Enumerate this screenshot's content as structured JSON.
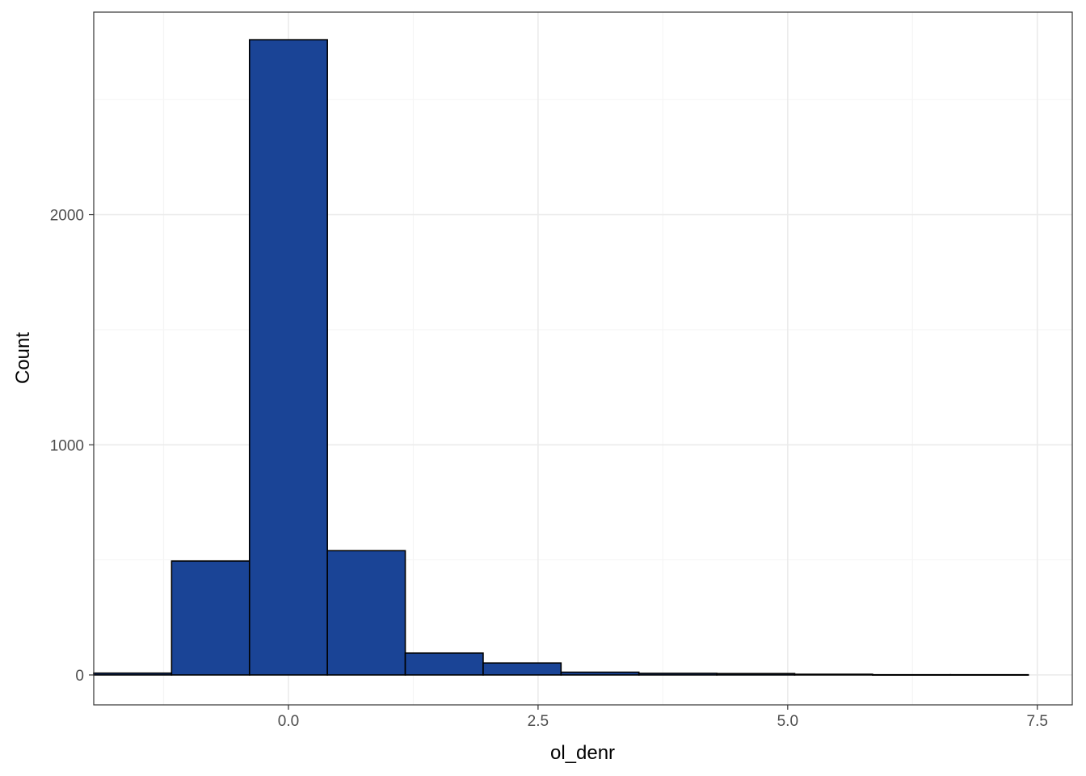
{
  "chart_data": {
    "type": "bar",
    "subtype": "histogram",
    "title": "",
    "xlabel": "ol_denr",
    "ylabel": "Count",
    "xlim": [
      -1.95,
      7.85
    ],
    "ylim": [
      -130,
      2880
    ],
    "x_ticks": [
      0.0,
      2.5,
      5.0,
      7.5
    ],
    "x_tick_labels": [
      "0.0",
      "2.5",
      "5.0",
      "7.5"
    ],
    "y_ticks": [
      0,
      1000,
      2000
    ],
    "y_tick_labels": [
      "0",
      "1000",
      "2000"
    ],
    "bins": [
      {
        "x0": -1.95,
        "x1": -1.17,
        "count": 8
      },
      {
        "x0": -1.17,
        "x1": -0.39,
        "count": 495
      },
      {
        "x0": -0.39,
        "x1": 0.39,
        "count": 2760
      },
      {
        "x0": 0.39,
        "x1": 1.17,
        "count": 540
      },
      {
        "x0": 1.17,
        "x1": 1.95,
        "count": 95
      },
      {
        "x0": 1.95,
        "x1": 2.73,
        "count": 52
      },
      {
        "x0": 2.73,
        "x1": 3.51,
        "count": 12
      },
      {
        "x0": 3.51,
        "x1": 4.29,
        "count": 7
      },
      {
        "x0": 4.29,
        "x1": 5.07,
        "count": 6
      },
      {
        "x0": 5.07,
        "x1": 5.85,
        "count": 3
      },
      {
        "x0": 5.85,
        "x1": 6.63,
        "count": 1
      },
      {
        "x0": 6.63,
        "x1": 7.41,
        "count": 1
      }
    ],
    "grid": true,
    "legend": "none",
    "colors": {
      "fill": "#1a4496",
      "outline": "#000000",
      "grid_major": "#ebebeb",
      "grid_minor": "#f5f5f5",
      "panel_border": "#333333",
      "tick_text": "#4d4d4d"
    }
  }
}
